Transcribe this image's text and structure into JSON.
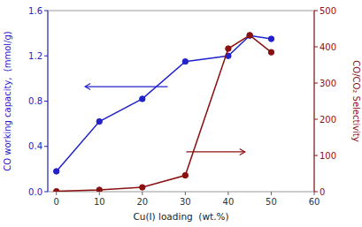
{
  "chart_data": {
    "type": "line",
    "xlabel": "Cu(I) loading  (wt.%)",
    "ylabel": "CO working capacity,  (mmol/g)",
    "y2label": "CO/CO₂ Selectivity",
    "x": [
      0,
      10,
      20,
      30,
      40,
      45,
      50
    ],
    "series": [
      {
        "color": "#2222cc",
        "marker": "circle",
        "line_style": "solid",
        "values": [
          0.18,
          0.62,
          0.82,
          1.15,
          1.2,
          1.38,
          1.35
        ]
      },
      {
        "color": "#8b1010",
        "marker": "circle",
        "line_style": "solid",
        "axis": "y2",
        "values": [
          1,
          5,
          12,
          45,
          395,
          432,
          385
        ]
      }
    ],
    "xlim": [
      -2,
      60
    ],
    "xticks": [
      0,
      10,
      20,
      30,
      40,
      50,
      60
    ],
    "ylim": [
      0,
      1.6
    ],
    "yticks": [
      {
        "value": 0,
        "label": "0.0"
      },
      0.4,
      0.8,
      1.2,
      1.6
    ],
    "y2lim": [
      0,
      500
    ],
    "y2ticks": [
      0,
      100,
      200,
      300,
      400,
      500
    ],
    "grid": false
  }
}
